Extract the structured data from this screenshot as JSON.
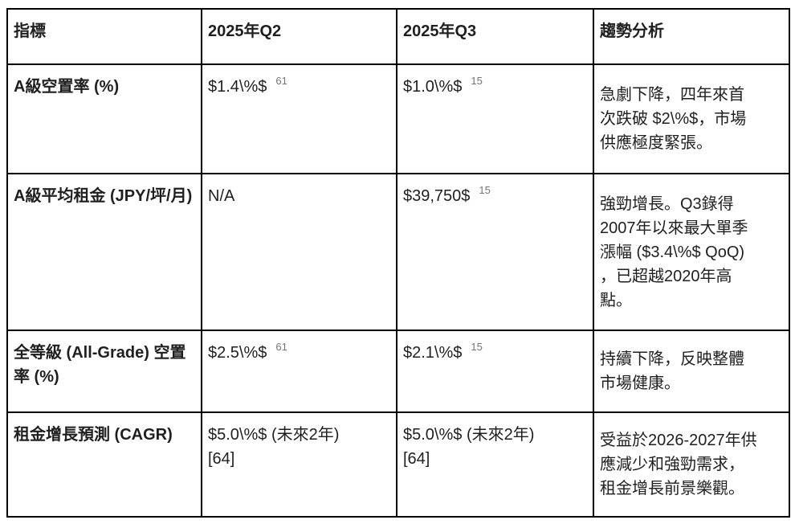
{
  "colors": {
    "text": "#1f1f1f",
    "border": "#000000",
    "citation": "#757575",
    "background": "#ffffff"
  },
  "table": {
    "name": "tokyo-office-market-metrics",
    "columns": [
      "指標",
      "2025年Q2",
      "2025年Q3",
      "趨勢分析"
    ],
    "rows": [
      {
        "indicator": "A級空置率 (%)",
        "q2": {
          "lines": [
            "$1.4\\%$"
          ],
          "sup": "61"
        },
        "q3": {
          "lines": [
            "$1.0\\%$"
          ],
          "sup": "15"
        },
        "trend": "急劇下降，四年來首次跌破 $2\\%$，市場供應極度緊張。"
      },
      {
        "indicator": "A級平均租金 (JPY/坪/月)",
        "q2": {
          "lines": [
            "N/A"
          ],
          "sup": ""
        },
        "q3": {
          "lines": [
            "$39,750$"
          ],
          "sup": "15"
        },
        "trend": "強勁增長。Q3錄得2007年以來最大單季漲幅 ($3.4\\%$ QoQ)，已超越2020年高點。"
      },
      {
        "indicator": "全等級 (All-Grade) 空置率 (%)",
        "q2": {
          "lines": [
            "$2.5\\%$"
          ],
          "sup": "61"
        },
        "q3": {
          "lines": [
            "$2.1\\%$"
          ],
          "sup": "15"
        },
        "trend": "持續下降，反映整體市場健康。"
      },
      {
        "indicator": "租金增長預測 (CAGR)",
        "q2": {
          "lines": [
            "$5.0\\%$ (未來2年)",
            "[64]"
          ],
          "sup": ""
        },
        "q3": {
          "lines": [
            "$5.0\\%$ (未來2年)",
            "[64]"
          ],
          "sup": ""
        },
        "trend": "受益於2026-2027年供應減少和強勁需求，租金增長前景樂觀。"
      }
    ]
  }
}
